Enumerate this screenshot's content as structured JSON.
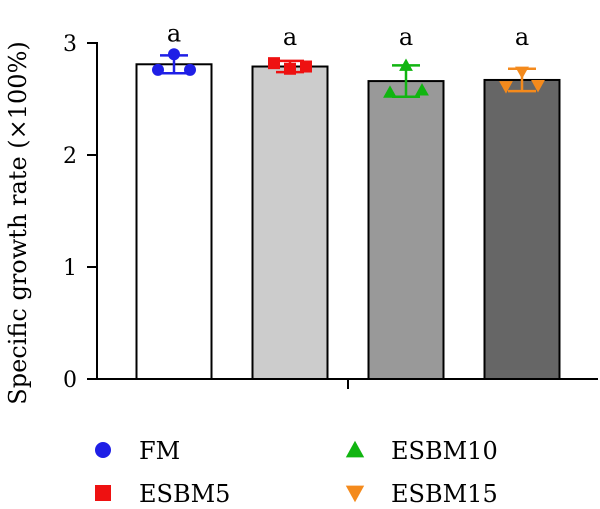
{
  "chart_data": {
    "type": "bar",
    "title": "",
    "xlabel": "",
    "ylabel": "Specific growth rate (×100%)",
    "ylim": [
      0,
      3
    ],
    "yticks": [
      0,
      1,
      2,
      3
    ],
    "grid": false,
    "legend_position": "bottom",
    "categories": [
      "FM",
      "ESBM5",
      "ESBM10",
      "ESBM15"
    ],
    "values": [
      2.81,
      2.79,
      2.66,
      2.67
    ],
    "errors": [
      0.08,
      0.05,
      0.14,
      0.1
    ],
    "significance": [
      "a",
      "a",
      "a",
      "a"
    ],
    "bar_fill_colors": [
      "#ffffff",
      "#cccccc",
      "#999999",
      "#666666"
    ],
    "points": [
      {
        "name": "FM",
        "marker": "circle",
        "color": "#1f1fe6",
        "values": [
          2.9,
          2.76,
          2.76
        ]
      },
      {
        "name": "ESBM5",
        "marker": "square",
        "color": "#ee1111",
        "values": [
          2.77,
          2.82,
          2.79
        ]
      },
      {
        "name": "ESBM10",
        "marker": "triangle-up",
        "color": "#11b511",
        "values": [
          2.8,
          2.56,
          2.58
        ]
      },
      {
        "name": "ESBM15",
        "marker": "triangle-down",
        "color": "#f48a1c",
        "values": [
          2.74,
          2.61,
          2.62
        ]
      }
    ]
  }
}
